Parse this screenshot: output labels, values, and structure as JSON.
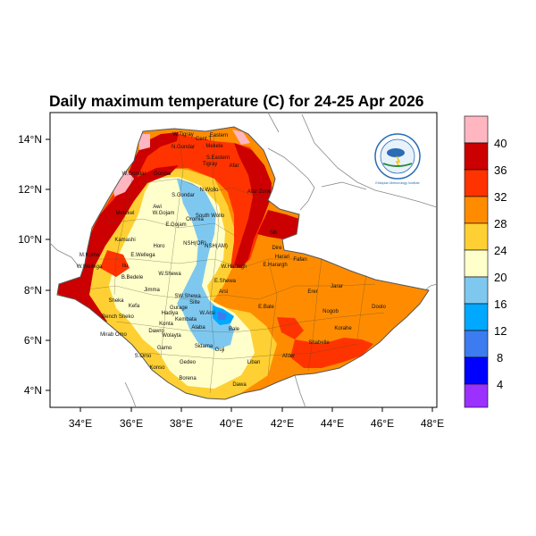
{
  "title": "Daily maximum temperature (C) for 24-25 Apr 2026",
  "map": {
    "lon_ticks": [
      "34°E",
      "36°E",
      "38°E",
      "40°E",
      "42°E",
      "44°E",
      "46°E",
      "48°E"
    ],
    "lat_ticks": [
      "14°N",
      "12°N",
      "10°N",
      "8°N",
      "6°N",
      "4°N"
    ],
    "lon_range": [
      33,
      48.3
    ],
    "lat_range": [
      3.2,
      15.0
    ],
    "regions": [
      "W.Tigray",
      "Cent.T",
      "Eastern",
      "Mekele",
      "S.Eastern",
      "N.Gondar",
      "Tigray",
      "Afar",
      "Gondar",
      "W.Gondar",
      "Afar Zone",
      "S.Gondar",
      "N.Wollo",
      "Metekel",
      "Awi",
      "W.Gojam",
      "South Wollo",
      "Oromia",
      "E.Gojam",
      "Kamashi",
      "Horo",
      "NSH(OR)",
      "NSH(AM)",
      "Siti",
      "M.Komo",
      "W.Wellega",
      "E.Wellega",
      "Ilu",
      "W.Harargh",
      "E.Harargh",
      "Fafan",
      "Dire",
      "Harari",
      "Jarar",
      "Erer",
      "Nogob",
      "Doolo",
      "Korahe",
      "Shabelle",
      "Afder",
      "Liban",
      "Dawa",
      "Borena",
      "Arsi",
      "W.Arsi",
      "E.Bale",
      "Bale",
      "Guji",
      "Gedeo",
      "Sidama",
      "Wolayta",
      "Gamo",
      "S.Omo",
      "Konso",
      "Hadiya",
      "Gurage",
      "Jimma",
      "B.Bedele",
      "Sheka",
      "Kefa",
      "Bench Sheko",
      "Mirab Omo",
      "Dawro",
      "Konta",
      "SW.Shewa",
      "W.Shewa",
      "E.Shewa",
      "Alaba",
      "Kembata",
      "Silte"
    ]
  },
  "colorbar": {
    "labels": [
      "40",
      "36",
      "32",
      "28",
      "24",
      "20",
      "16",
      "12",
      "8",
      "4"
    ],
    "colors": {
      "c44": "#ffb6c1",
      "c40": "#cc0000",
      "c36": "#ff3300",
      "c32": "#ff8c00",
      "c28": "#ffd033",
      "c24": "#ffffcc",
      "c20": "#7ec8f0",
      "c16": "#00a8ff",
      "c12": "#3c7cf0",
      "c8": "#0000ff",
      "c4": "#9b30ff"
    }
  },
  "logo": {
    "text": "Ethiopian Meteorology Institute"
  }
}
